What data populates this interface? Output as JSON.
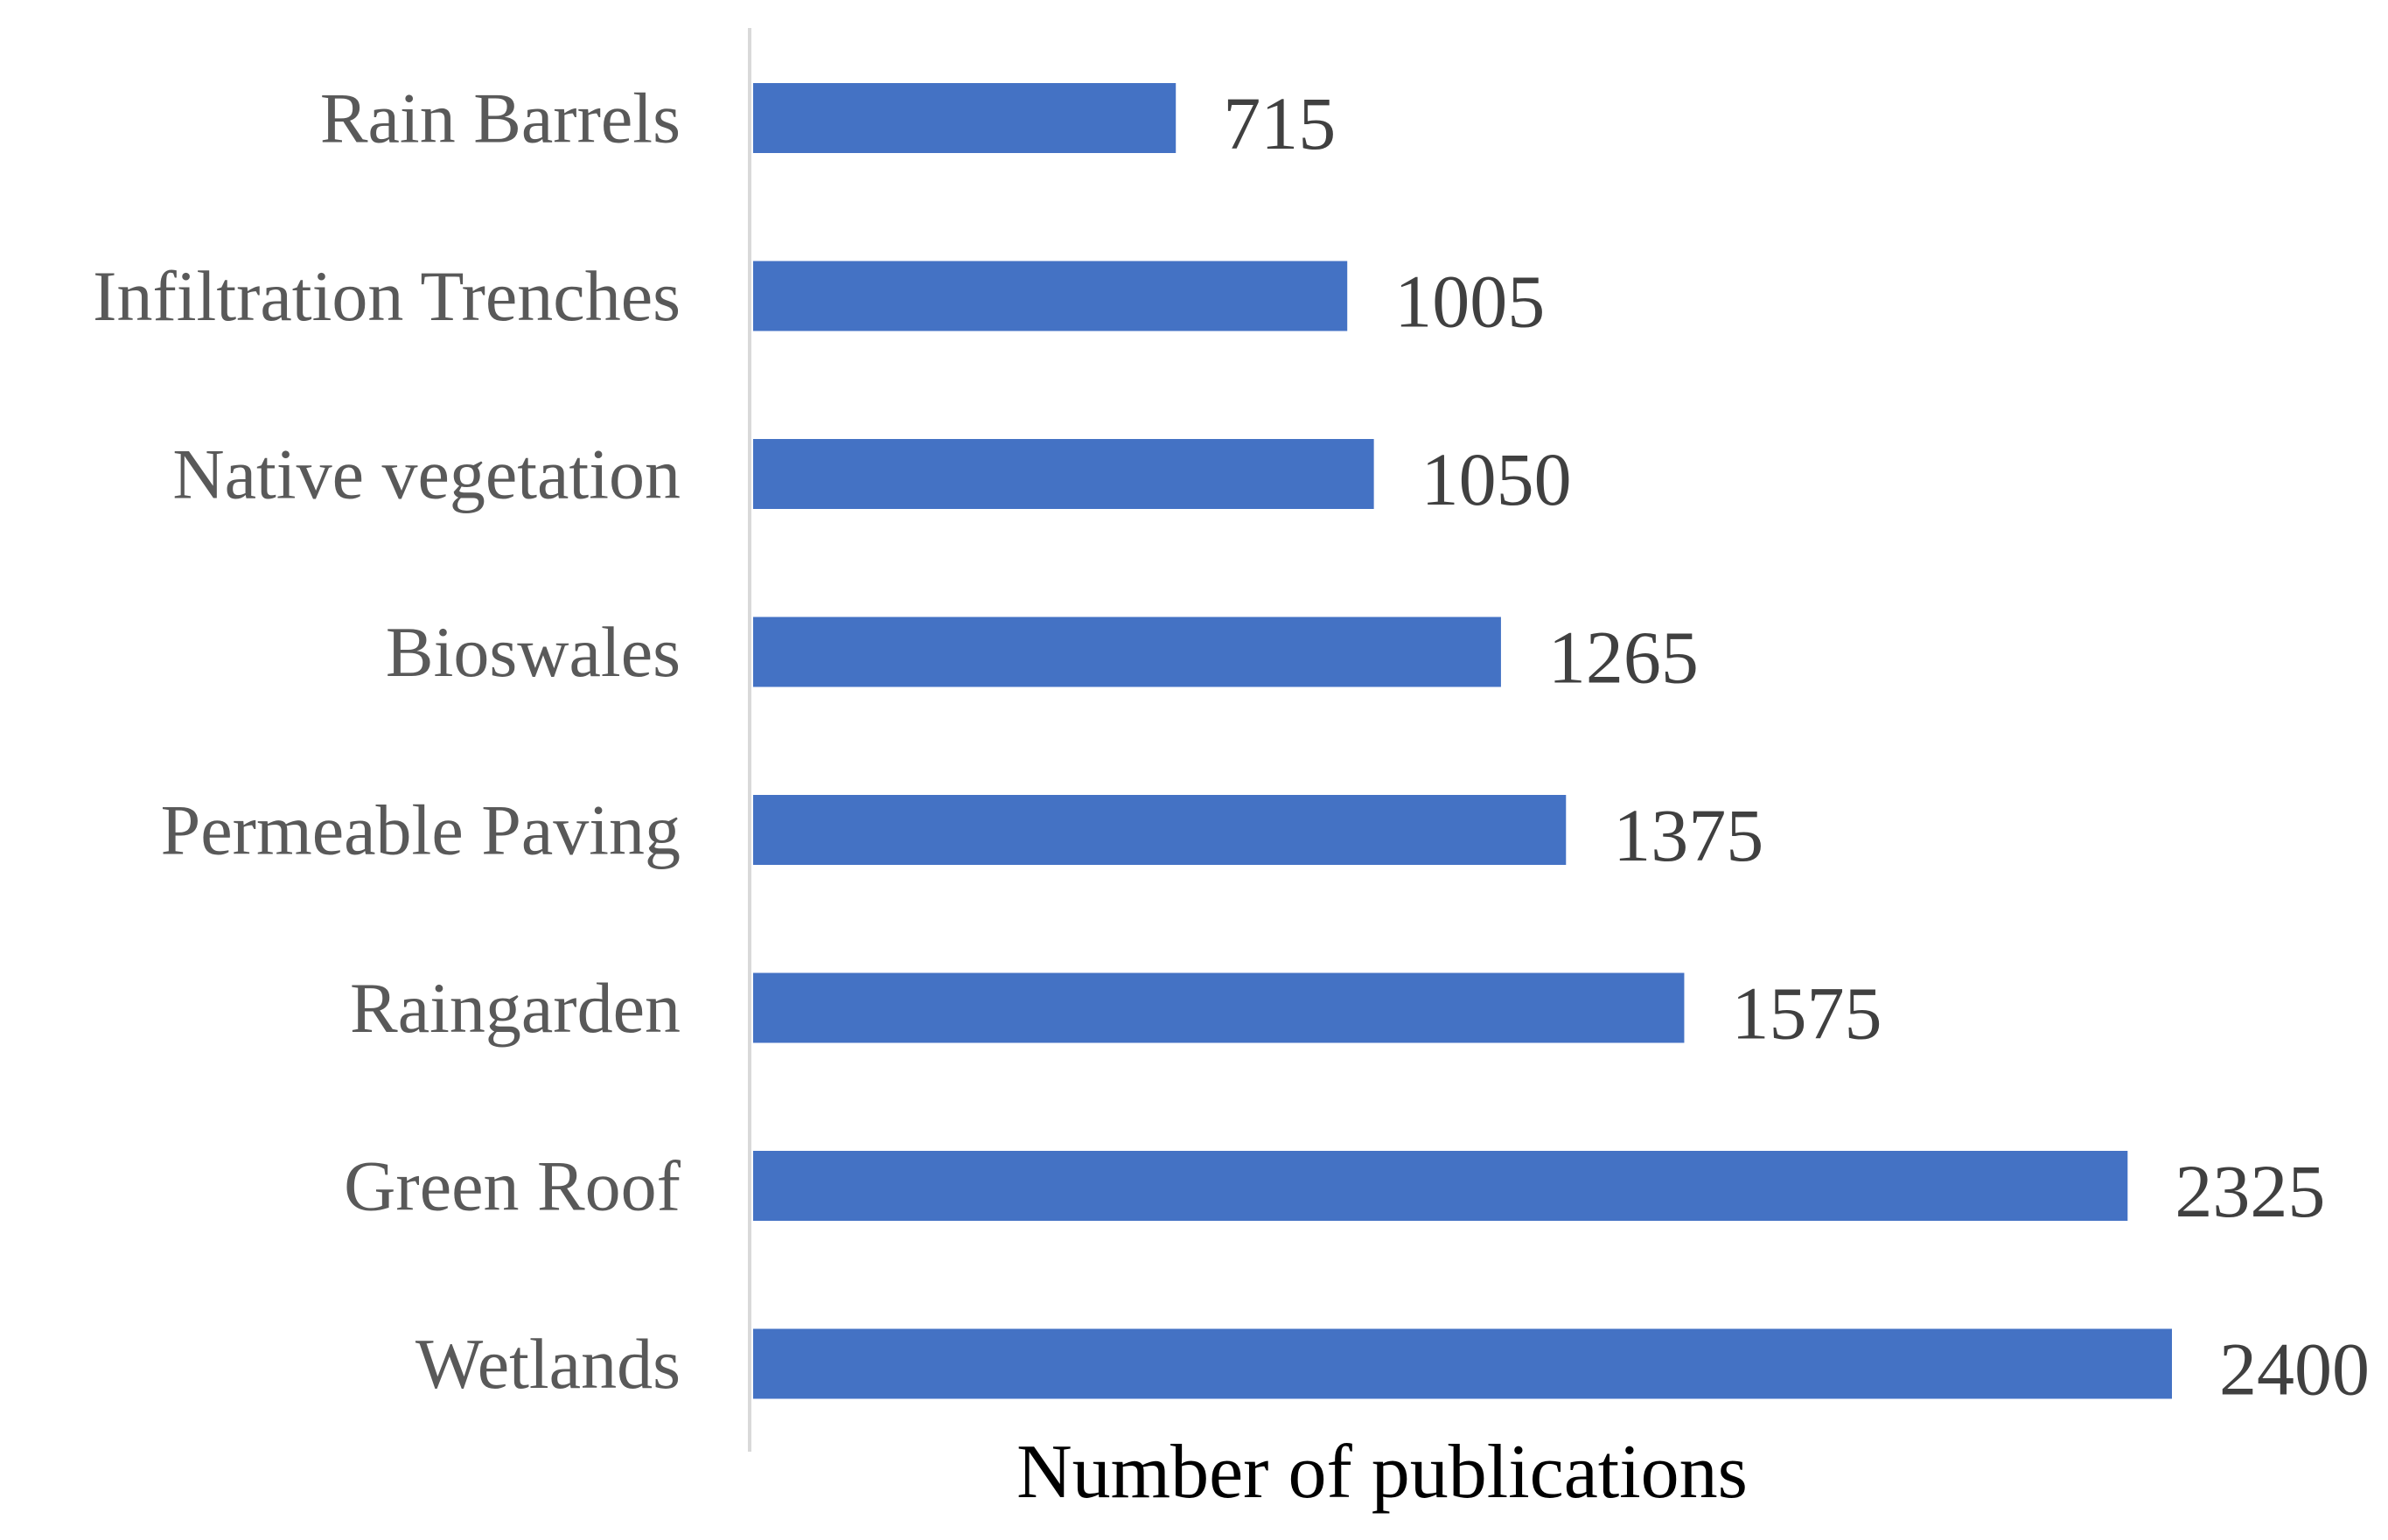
{
  "chart_data": {
    "type": "bar",
    "orientation": "horizontal",
    "categories": [
      "Rain Barrels",
      "Infiltration Trenches",
      "Native vegetation",
      "Bioswales",
      "Permeable Paving",
      "Raingarden",
      "Green Roof",
      "Wetlands"
    ],
    "values": [
      715,
      1005,
      1050,
      1265,
      1375,
      1575,
      2325,
      2400
    ],
    "title": "",
    "xlabel": "Number of publications",
    "ylabel": "",
    "xlim": [
      0,
      2400
    ],
    "grid": false,
    "legend": "none",
    "data_labels": true,
    "bar_color": "#4472C4",
    "axis_line_color": "#D9D9D9"
  }
}
